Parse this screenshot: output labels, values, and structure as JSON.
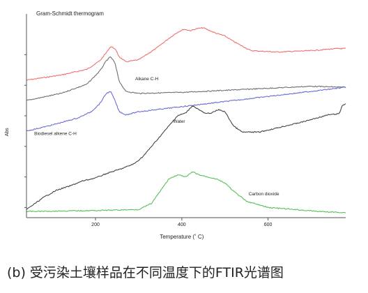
{
  "chart_data": {
    "type": "line",
    "title": "Gram-Schmidt thermogram",
    "xlabel": "Temperature (˚ C)",
    "ylabel": "Abs",
    "xlim": [
      40,
      780
    ],
    "x_ticks": [
      200,
      400,
      600
    ],
    "ylim": [
      0,
      1
    ],
    "y_ticks": [
      0.05,
      0.2,
      0.35,
      0.5,
      0.65,
      0.8
    ],
    "grid": false,
    "annotations": [
      {
        "text": "Alkane C-H",
        "x": 292,
        "y": 0.675
      },
      {
        "text": "Biodiesel alkene C-H",
        "x": 58,
        "y": 0.405
      },
      {
        "text": "Water",
        "x": 380,
        "y": 0.465
      },
      {
        "text": "Carbon dioxide",
        "x": 555,
        "y": 0.11
      }
    ],
    "series": [
      {
        "color": "#f07070",
        "x": [
          40,
          120,
          180,
          210,
          225,
          235,
          245,
          255,
          270,
          300,
          340,
          370,
          390,
          405,
          420,
          435,
          450,
          465,
          480,
          500,
          520,
          560,
          620,
          700,
          760,
          780
        ],
        "y": [
          0.675,
          0.7,
          0.728,
          0.77,
          0.81,
          0.84,
          0.83,
          0.79,
          0.765,
          0.775,
          0.83,
          0.88,
          0.91,
          0.925,
          0.918,
          0.928,
          0.932,
          0.918,
          0.905,
          0.892,
          0.865,
          0.82,
          0.813,
          0.82,
          0.83,
          0.83
        ]
      },
      {
        "color": "#707070",
        "x": [
          40,
          120,
          180,
          210,
          225,
          235,
          245,
          255,
          270,
          300,
          400,
          500,
          600,
          700,
          780
        ],
        "y": [
          0.575,
          0.61,
          0.655,
          0.72,
          0.77,
          0.79,
          0.76,
          0.67,
          0.62,
          0.61,
          0.615,
          0.625,
          0.635,
          0.645,
          0.64
        ]
      },
      {
        "color": "#6c6cd8",
        "x": [
          40,
          100,
          160,
          190,
          210,
          225,
          235,
          245,
          255,
          270,
          300,
          400,
          500,
          600,
          700,
          780
        ],
        "y": [
          0.425,
          0.455,
          0.49,
          0.52,
          0.56,
          0.61,
          0.62,
          0.575,
          0.52,
          0.505,
          0.52,
          0.545,
          0.57,
          0.595,
          0.62,
          0.64
        ]
      },
      {
        "color": "#444444",
        "x": [
          40,
          60,
          80,
          110,
          140,
          170,
          200,
          230,
          260,
          290,
          310,
          330,
          350,
          370,
          390,
          410,
          425,
          440,
          455,
          470,
          485,
          500,
          520,
          540,
          580,
          620,
          680,
          740,
          765,
          772,
          780
        ],
        "y": [
          0.04,
          0.07,
          0.1,
          0.135,
          0.155,
          0.18,
          0.195,
          0.22,
          0.24,
          0.265,
          0.3,
          0.35,
          0.4,
          0.45,
          0.5,
          0.515,
          0.55,
          0.53,
          0.51,
          0.515,
          0.53,
          0.52,
          0.45,
          0.42,
          0.42,
          0.44,
          0.47,
          0.505,
          0.51,
          0.55,
          0.56
        ]
      },
      {
        "color": "#5ac05a",
        "x": [
          40,
          100,
          200,
          300,
          330,
          350,
          370,
          390,
          410,
          425,
          440,
          460,
          480,
          500,
          520,
          550,
          600,
          660,
          720,
          780
        ],
        "y": [
          0.03,
          0.032,
          0.035,
          0.04,
          0.07,
          0.13,
          0.19,
          0.21,
          0.2,
          0.225,
          0.21,
          0.2,
          0.19,
          0.17,
          0.13,
          0.08,
          0.05,
          0.04,
          0.03,
          0.025
        ]
      }
    ]
  },
  "caption": "(b)  受污染土壤样品在不同温度下的FTIR光谱图"
}
